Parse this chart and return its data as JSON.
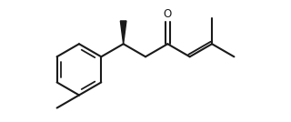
{
  "background_color": "#ffffff",
  "line_color": "#1a1a1a",
  "line_width": 1.5,
  "figsize": [
    3.2,
    1.34
  ],
  "dpi": 100
}
